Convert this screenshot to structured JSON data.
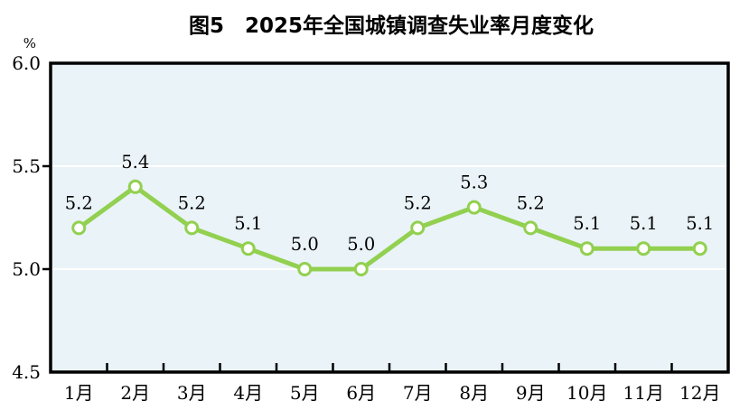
{
  "chart_data": {
    "type": "line",
    "title": "图5　2025年全国城镇调查失业率月度变化",
    "ylabel": "%",
    "categories": [
      "1月",
      "2月",
      "3月",
      "4月",
      "5月",
      "6月",
      "7月",
      "8月",
      "9月",
      "10月",
      "11月",
      "12月"
    ],
    "values": [
      5.2,
      5.4,
      5.2,
      5.1,
      5.0,
      5.0,
      5.2,
      5.3,
      5.2,
      5.1,
      5.1,
      5.1
    ],
    "data_labels": [
      "5.2",
      "5.4",
      "5.2",
      "5.1",
      "5.0",
      "5.0",
      "5.2",
      "5.3",
      "5.2",
      "5.1",
      "5.1",
      "5.1"
    ],
    "ylim": [
      4.5,
      6.0
    ],
    "yticks": [
      4.5,
      5.0,
      5.5,
      6.0
    ],
    "ytick_labels": [
      "4.5",
      "5.0",
      "5.5",
      "6.0"
    ],
    "grid": true,
    "legend": "none",
    "colors": {
      "line": "#92d050",
      "marker_fill": "#ffffff",
      "marker_stroke": "#92d050",
      "plot_background": "#eaf3f8",
      "gridline": "#ffffff",
      "axis": "#000000",
      "text": "#000000"
    }
  }
}
